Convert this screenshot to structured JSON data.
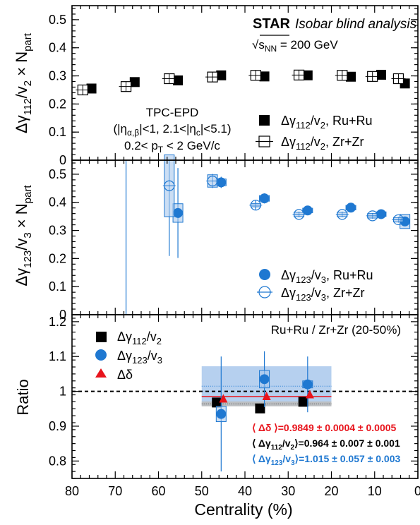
{
  "texts": {
    "header_star": "STAR",
    "header_blind": "Isobar blind analysis",
    "energy_label": "√s",
    "energy_sub": "NN",
    "energy_value": " = 200 GeV",
    "tpc_epd": "TPC-EPD",
    "eta_cuts": "(|η",
    "eta_sub_ab": "α,β",
    "eta_mid": "|<1, 2.1<|η",
    "eta_sub_c": "c",
    "eta_end": "|<5.1)",
    "pt_pre": "0.2< p",
    "pt_sub": "T",
    "pt_post": " < 2 GeV/c",
    "ratio_title": "Ru+Ru / Zr+Zr (20-50%)",
    "ylabel_top_pre": "Δγ",
    "ylabel_top_sub": "112",
    "ylabel_top_mid": "/v",
    "ylabel_top_sub2": "2",
    "ylabel_top_post": " × N",
    "ylabel_top_sub3": "part",
    "ylabel_mid_pre": "Δγ",
    "ylabel_mid_sub": "123",
    "ylabel_mid_mid": "/v",
    "ylabel_mid_sub2": "3",
    "ylabel_mid_post": " × N",
    "ylabel_mid_sub3": "part",
    "ylabel_bot": "Ratio",
    "xlabel": "Centrality (%)",
    "leg_top_ru_pre": "Δγ",
    "leg_top_ru_sub": "112",
    "leg_top_ru_mid": "/v",
    "leg_top_ru_sub2": "2",
    "leg_top_ru_post": ", Ru+Ru",
    "leg_top_zr_post": ", Zr+Zr",
    "leg_mid_sub": "123",
    "leg_mid_sub2": "3",
    "leg_bot_g112_pre": "Δγ",
    "leg_bot_g112_sub": "112",
    "leg_bot_g112_mid": "/v",
    "leg_bot_g112_sub2": "2",
    "leg_bot_g123_sub": "123",
    "leg_bot_g123_sub2": "3",
    "leg_bot_delta": "Δδ",
    "avg_delta_pre": "⟨ Δδ ⟩",
    "avg_delta_val": "=0.9849 ± 0.0004 ± 0.0005",
    "avg_g112_pre": "⟨ Δγ",
    "avg_g112_sub": "112",
    "avg_g112_mid": "/v",
    "avg_g112_sub2": "2",
    "avg_g112_val": "⟩=0.964 ± 0.007 ± 0.001",
    "avg_g123_pre": "⟨ Δγ",
    "avg_g123_sub": "123",
    "avg_g123_mid": "/v",
    "avg_g123_sub2": "3",
    "avg_g123_val": "⟩=1.015 ± 0.057 ± 0.003"
  },
  "colors": {
    "black": "#000000",
    "blue": "#1f78d1",
    "blue_band": "#a9c8ec",
    "red": "#e8141c",
    "grey_band": "#bdbdbd"
  },
  "chart_data": [
    {
      "type": "scatter",
      "panel": "top",
      "xlim": [
        80,
        0
      ],
      "ylim": [
        0,
        0.55
      ],
      "yticks": [
        0,
        0.1,
        0.2,
        0.3,
        0.4,
        0.5
      ],
      "ytick_labels": [
        "0",
        "0.1",
        "0.2",
        "0.3",
        "0.4",
        "0.5"
      ],
      "series": [
        {
          "name": "Δγ112/v2, Ru+Ru",
          "marker": "filled-square",
          "x": [
            75.5,
            65.5,
            55.5,
            45.5,
            35.5,
            25.5,
            15.5,
            8.5,
            3.0
          ],
          "y": [
            0.255,
            0.278,
            0.284,
            0.302,
            0.298,
            0.302,
            0.297,
            0.304,
            0.273
          ],
          "err": [
            0.01,
            0.006,
            0.005,
            0.004,
            0.004,
            0.004,
            0.004,
            0.004,
            0.004
          ]
        },
        {
          "name": "Δγ112/v2, Zr+Zr",
          "marker": "open-square",
          "x": [
            77.5,
            67.5,
            57.5,
            47.5,
            37.5,
            27.5,
            17.5,
            10.5,
            4.5
          ],
          "y": [
            0.25,
            0.262,
            0.29,
            0.296,
            0.302,
            0.303,
            0.302,
            0.298,
            0.29
          ],
          "err": [
            0.01,
            0.006,
            0.005,
            0.004,
            0.004,
            0.004,
            0.004,
            0.004,
            0.004
          ]
        }
      ]
    },
    {
      "type": "scatter",
      "panel": "middle",
      "xlim": [
        80,
        0
      ],
      "ylim": [
        0,
        0.55
      ],
      "yticks": [
        0,
        0.1,
        0.2,
        0.3,
        0.4,
        0.5
      ],
      "ytick_labels": [
        "0",
        "0.1",
        "0.2",
        "0.3",
        "0.4",
        "0.5"
      ],
      "series": [
        {
          "name": "Δγ123/v3, Ru+Ru",
          "marker": "filled-circle",
          "x": [
            55.5,
            45.5,
            35.5,
            25.5,
            15.5,
            8.5,
            3.0
          ],
          "y": [
            0.362,
            0.471,
            0.414,
            0.371,
            0.381,
            0.358,
            0.332
          ],
          "err": [
            0.16,
            0.02,
            0.018,
            0.01,
            0.01,
            0.01,
            0.01
          ],
          "sys": [
            0.033,
            0.012,
            0.01,
            0.008,
            0.008,
            0.008,
            0.025
          ]
        },
        {
          "name": "Δγ123/v3, Zr+Zr",
          "marker": "open-circle",
          "x": [
            67.5,
            57.5,
            47.5,
            37.5,
            27.5,
            17.5,
            10.5,
            4.5
          ],
          "y": [
            0.0,
            0.459,
            0.476,
            0.39,
            0.357,
            0.357,
            0.352,
            0.338
          ],
          "err": [
            0.56,
            0.25,
            0.025,
            0.018,
            0.01,
            0.01,
            0.01,
            0.01
          ],
          "sys": [
            0.0,
            0.11,
            0.022,
            0.006,
            0.008,
            0.008,
            0.008,
            0.008
          ]
        }
      ]
    },
    {
      "type": "scatter",
      "panel": "bottom",
      "xlim": [
        80,
        0
      ],
      "ylim": [
        0.75,
        1.22
      ],
      "yticks": [
        0.8,
        0.9,
        1.0,
        1.1,
        1.2
      ],
      "ytick_labels": [
        "0.8",
        "0.9",
        "1",
        "1.1",
        "1.2"
      ],
      "xticks": [
        80,
        70,
        60,
        50,
        40,
        30,
        20,
        10,
        0
      ],
      "xtick_labels": [
        "80",
        "70",
        "60",
        "50",
        "40",
        "30",
        "20",
        "10",
        "0"
      ],
      "reference_line": 1.0,
      "series": [
        {
          "name": "Δγ112/v2",
          "marker": "filled-square",
          "x": [
            46.5,
            36.5,
            26.5
          ],
          "y": [
            0.968,
            0.951,
            0.97
          ],
          "err": [
            0.01,
            0.01,
            0.01
          ],
          "avg": 0.964,
          "avg_stat": 0.007,
          "avg_sys": 0.001
        },
        {
          "name": "Δγ123/v3",
          "marker": "filled-circle",
          "x": [
            45.5,
            35.5,
            25.5
          ],
          "y": [
            0.935,
            1.035,
            1.02
          ],
          "err": [
            0.165,
            0.08,
            0.08
          ],
          "sys": [
            0.022,
            0.025,
            0.01
          ],
          "avg": 1.015,
          "avg_stat": 0.057,
          "avg_sys": 0.003
        },
        {
          "name": "Δδ",
          "marker": "filled-triangle",
          "x": [
            45.0,
            35.0,
            25.0
          ],
          "y": [
            0.978,
            0.985,
            0.99
          ],
          "err": [
            0.002,
            0.002,
            0.002
          ],
          "avg": 0.9849,
          "avg_stat": 0.0004,
          "avg_sys": 0.0005
        }
      ],
      "bands_x_range": [
        50,
        20
      ]
    }
  ]
}
